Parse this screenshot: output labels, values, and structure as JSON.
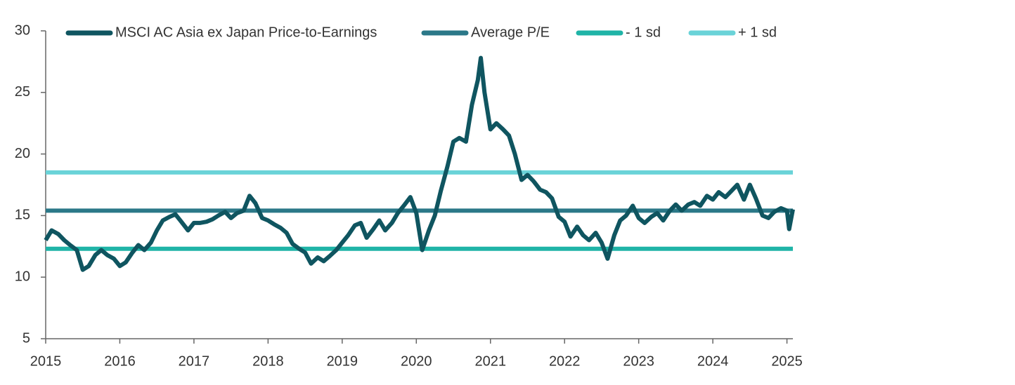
{
  "chart_data": {
    "type": "line",
    "legend": "top",
    "xlim": [
      2015,
      2025.08
    ],
    "xticks": [
      2015,
      2016,
      2017,
      2018,
      2019,
      2020,
      2021,
      2022,
      2023,
      2024,
      2025
    ],
    "ylim": [
      5,
      30
    ],
    "yticks": [
      5,
      10,
      15,
      20,
      25,
      30
    ],
    "series": [
      {
        "name": "MSCI AC Asia ex Japan Price-to-Earnings",
        "color": "#0f5560",
        "x": [
          2015.0,
          2015.08,
          2015.17,
          2015.25,
          2015.33,
          2015.42,
          2015.5,
          2015.58,
          2015.67,
          2015.75,
          2015.83,
          2015.92,
          2016.0,
          2016.08,
          2016.17,
          2016.25,
          2016.33,
          2016.42,
          2016.5,
          2016.58,
          2016.67,
          2016.75,
          2016.83,
          2016.92,
          2017.0,
          2017.08,
          2017.17,
          2017.25,
          2017.33,
          2017.42,
          2017.5,
          2017.58,
          2017.67,
          2017.75,
          2017.83,
          2017.92,
          2018.0,
          2018.08,
          2018.17,
          2018.25,
          2018.33,
          2018.42,
          2018.5,
          2018.58,
          2018.67,
          2018.75,
          2018.83,
          2018.92,
          2019.0,
          2019.08,
          2019.17,
          2019.25,
          2019.33,
          2019.42,
          2019.5,
          2019.58,
          2019.67,
          2019.75,
          2019.83,
          2019.92,
          2020.0,
          2020.08,
          2020.17,
          2020.25,
          2020.33,
          2020.42,
          2020.5,
          2020.58,
          2020.67,
          2020.75,
          2020.83,
          2020.87,
          2020.92,
          2021.0,
          2021.08,
          2021.17,
          2021.25,
          2021.33,
          2021.42,
          2021.5,
          2021.58,
          2021.67,
          2021.75,
          2021.83,
          2021.92,
          2022.0,
          2022.08,
          2022.17,
          2022.25,
          2022.33,
          2022.42,
          2022.5,
          2022.58,
          2022.67,
          2022.75,
          2022.83,
          2022.92,
          2023.0,
          2023.08,
          2023.17,
          2023.25,
          2023.33,
          2023.42,
          2023.5,
          2023.58,
          2023.67,
          2023.75,
          2023.83,
          2023.92,
          2024.0,
          2024.08,
          2024.17,
          2024.25,
          2024.33,
          2024.42,
          2024.5,
          2024.58,
          2024.67,
          2024.75,
          2024.83,
          2024.92,
          2025.0,
          2025.03,
          2025.08
        ],
        "values": [
          13.0,
          13.8,
          13.5,
          13.0,
          12.6,
          12.2,
          10.6,
          10.9,
          11.8,
          12.2,
          11.8,
          11.5,
          10.9,
          11.2,
          12.0,
          12.6,
          12.2,
          12.8,
          13.8,
          14.6,
          14.9,
          15.1,
          14.5,
          13.8,
          14.4,
          14.4,
          14.5,
          14.7,
          15.0,
          15.3,
          14.8,
          15.2,
          15.4,
          16.6,
          16.0,
          14.8,
          14.6,
          14.3,
          14.0,
          13.6,
          12.7,
          12.3,
          12.0,
          11.1,
          11.6,
          11.3,
          11.7,
          12.2,
          12.8,
          13.4,
          14.2,
          14.4,
          13.2,
          13.9,
          14.6,
          13.8,
          14.4,
          15.2,
          15.8,
          16.5,
          15.2,
          12.2,
          13.8,
          15.0,
          17.0,
          19.0,
          21.0,
          21.3,
          21.0,
          24.0,
          26.0,
          27.8,
          25.0,
          22.0,
          22.5,
          22.0,
          21.5,
          20.0,
          17.9,
          18.3,
          17.8,
          17.1,
          16.9,
          16.4,
          14.9,
          14.5,
          13.3,
          14.1,
          13.4,
          13.0,
          13.6,
          12.8,
          11.5,
          13.4,
          14.6,
          15.0,
          15.8,
          14.8,
          14.4,
          14.9,
          15.2,
          14.6,
          15.4,
          15.9,
          15.4,
          15.9,
          16.1,
          15.8,
          16.6,
          16.3,
          16.9,
          16.5,
          17.0,
          17.5,
          16.3,
          17.5,
          16.4,
          15.0,
          14.8,
          15.3,
          15.6,
          15.4,
          13.9,
          15.5
        ]
      },
      {
        "name": "Average P/E",
        "color": "#2b7888",
        "x": [
          2015.0,
          2025.08
        ],
        "values": [
          15.4,
          15.4
        ]
      },
      {
        "name": "- 1 sd",
        "color": "#1fb4a7",
        "x": [
          2015.0,
          2025.08
        ],
        "values": [
          12.3,
          12.3
        ]
      },
      {
        "name": "+ 1 sd",
        "color": "#6ad3d8",
        "x": [
          2015.0,
          2025.08
        ],
        "values": [
          18.5,
          18.5
        ]
      }
    ]
  }
}
